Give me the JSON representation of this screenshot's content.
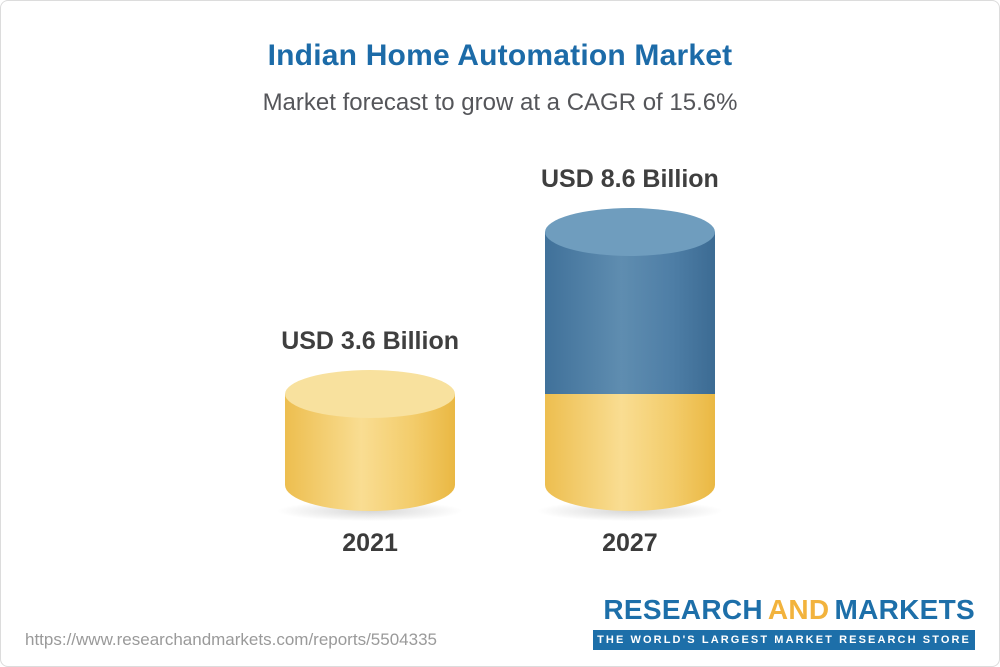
{
  "header": {
    "title": "Indian Home Automation Market",
    "subtitle": "Market forecast to grow at a CAGR of 15.6%"
  },
  "chart_data": {
    "type": "bar",
    "title": "Indian Home Automation Market",
    "subtitle": "Market forecast to grow at a CAGR of 15.6%",
    "categories": [
      "2021",
      "2027"
    ],
    "values": [
      3.6,
      8.6
    ],
    "unit": "USD Billion",
    "ylim": [
      0,
      9
    ],
    "grid": false,
    "legend": "none",
    "bars": [
      {
        "category": "2021",
        "value": 3.6,
        "value_label": "USD 3.6 Billion",
        "segments": [
          {
            "value": 3.6,
            "color_name": "yellow",
            "color": "#f3cc6b"
          }
        ]
      },
      {
        "category": "2027",
        "value": 8.6,
        "value_label": "USD 8.6 Billion",
        "segments": [
          {
            "value": 5.0,
            "color_name": "blue",
            "color": "#4e7ea6"
          },
          {
            "value": 3.6,
            "color_name": "yellow",
            "color": "#f3cc6b"
          }
        ]
      }
    ]
  },
  "footer": {
    "url": "https://www.researchandmarkets.com/reports/5504335",
    "logo": {
      "research": "RESEARCH",
      "and": "AND",
      "markets": "MARKETS",
      "tagline": "THE WORLD'S LARGEST MARKET RESEARCH STORE"
    },
    "colors": {
      "blue": "#1d6fa9",
      "gold": "#f2b33d"
    }
  }
}
